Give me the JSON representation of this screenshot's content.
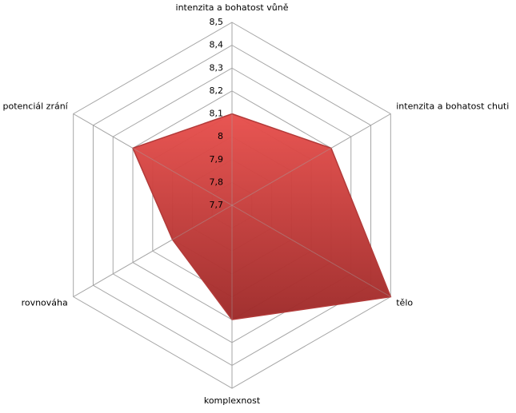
{
  "chart_data": {
    "type": "radar",
    "categories": [
      "intenzita a bohatost vůně",
      "intenzita a bohatost chuti",
      "tělo",
      "komplexnost",
      "rovnováha",
      "potenciál zrání"
    ],
    "values": [
      8.1,
      8.2,
      8.5,
      8.2,
      8.0,
      8.2
    ],
    "color": "#d9403f",
    "rlim": [
      7.7,
      8.5
    ],
    "rticks": [
      {
        "value": 7.7,
        "label": "7,7"
      },
      {
        "value": 7.8,
        "label": "7,8"
      },
      {
        "value": 7.9,
        "label": "7,9"
      },
      8,
      {
        "value": 8.1,
        "label": "8,1"
      },
      {
        "value": 8.2,
        "label": "8,2"
      },
      {
        "value": 8.3,
        "label": "8,3"
      },
      {
        "value": 8.4,
        "label": "8,4"
      },
      {
        "value": 8.5,
        "label": "8,5"
      }
    ],
    "grid": true
  }
}
